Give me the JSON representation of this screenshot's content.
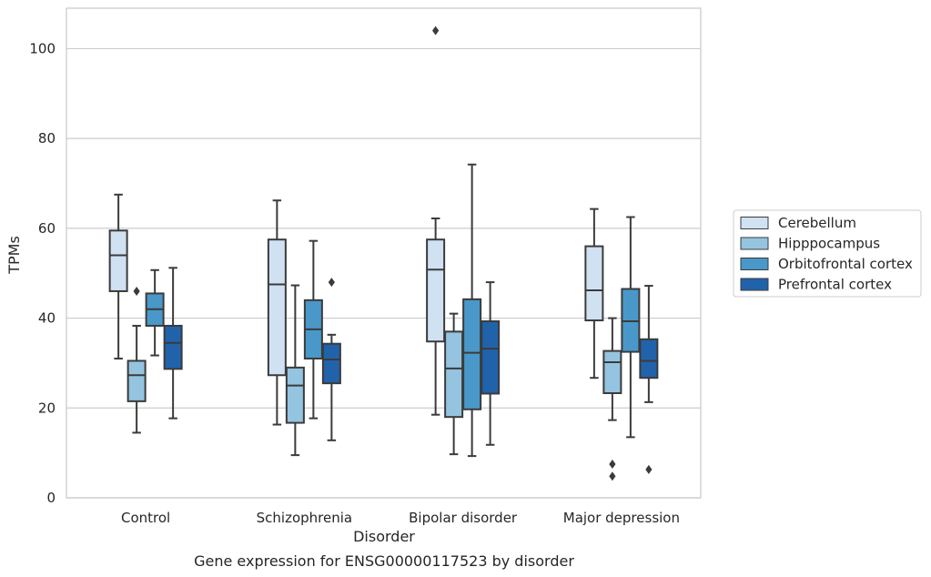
{
  "chart_data": {
    "type": "box",
    "caption": "Gene expression for ENSG00000117523 by disorder",
    "xlabel": "Disorder",
    "ylabel": "TPMs",
    "ylim": [
      0,
      109
    ],
    "yticks": [
      0,
      20,
      40,
      60,
      80,
      100
    ],
    "grid": true,
    "legend_position": "right",
    "categories": [
      "Control",
      "Schizophrenia",
      "Bipolar disorder",
      "Major depression"
    ],
    "series": [
      {
        "name": "Cerebellum",
        "color": "#d0e1f2",
        "boxes": [
          {
            "whisker_low": 31,
            "q1": 46,
            "median": 54,
            "q3": 59.5,
            "whisker_high": 67.5,
            "outliers": []
          },
          {
            "whisker_low": 16.3,
            "q1": 27.3,
            "median": 47.5,
            "q3": 57.5,
            "whisker_high": 66.2,
            "outliers": []
          },
          {
            "whisker_low": 18.5,
            "q1": 34.8,
            "median": 50.8,
            "q3": 57.5,
            "whisker_high": 62.2,
            "outliers": [
              104
            ]
          },
          {
            "whisker_low": 26.7,
            "q1": 39.5,
            "median": 46.2,
            "q3": 56,
            "whisker_high": 64.3,
            "outliers": []
          }
        ]
      },
      {
        "name": "Hipppocampus",
        "color": "#94c4df",
        "boxes": [
          {
            "whisker_low": 14.5,
            "q1": 21.5,
            "median": 27.3,
            "q3": 30.5,
            "whisker_high": 38.3,
            "outliers": [
              46
            ]
          },
          {
            "whisker_low": 9.5,
            "q1": 16.7,
            "median": 25,
            "q3": 29,
            "whisker_high": 47.3,
            "outliers": []
          },
          {
            "whisker_low": 9.7,
            "q1": 18,
            "median": 28.8,
            "q3": 37,
            "whisker_high": 41,
            "outliers": []
          },
          {
            "whisker_low": 17.3,
            "q1": 23.3,
            "median": 30.2,
            "q3": 32.7,
            "whisker_high": 40,
            "outliers": [
              4.8,
              7.5
            ]
          }
        ]
      },
      {
        "name": "Orbitofrontal cortex",
        "color": "#4a98c9",
        "boxes": [
          {
            "whisker_low": 31.7,
            "q1": 38.3,
            "median": 42,
            "q3": 45.5,
            "whisker_high": 50.7,
            "outliers": []
          },
          {
            "whisker_low": 17.7,
            "q1": 31,
            "median": 37.5,
            "q3": 44,
            "whisker_high": 57.2,
            "outliers": []
          },
          {
            "whisker_low": 9.3,
            "q1": 19.7,
            "median": 32.3,
            "q3": 44.2,
            "whisker_high": 74.2,
            "outliers": []
          },
          {
            "whisker_low": 13.5,
            "q1": 32.5,
            "median": 39.3,
            "q3": 46.5,
            "whisker_high": 62.5,
            "outliers": []
          }
        ]
      },
      {
        "name": "Prefrontal cortex",
        "color": "#2163aa",
        "boxes": [
          {
            "whisker_low": 17.7,
            "q1": 28.7,
            "median": 34.5,
            "q3": 38.3,
            "whisker_high": 51.2,
            "outliers": []
          },
          {
            "whisker_low": 12.8,
            "q1": 25.5,
            "median": 30.8,
            "q3": 34.3,
            "whisker_high": 36.3,
            "outliers": [
              48
            ]
          },
          {
            "whisker_low": 11.8,
            "q1": 23.2,
            "median": 33.2,
            "q3": 39.3,
            "whisker_high": 48,
            "outliers": []
          },
          {
            "whisker_low": 21.3,
            "q1": 26.7,
            "median": 30.5,
            "q3": 35.3,
            "whisker_high": 47.2,
            "outliers": [
              6.3
            ]
          }
        ]
      }
    ]
  }
}
